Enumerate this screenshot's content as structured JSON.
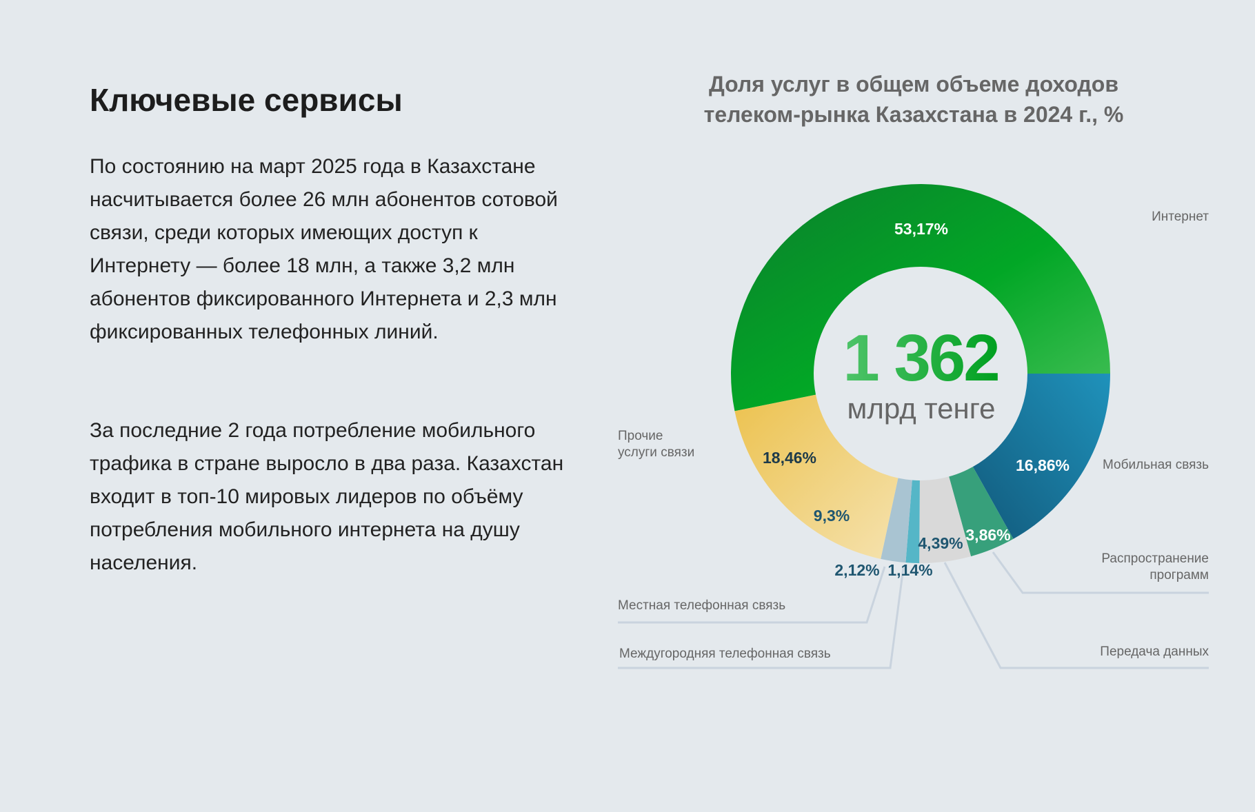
{
  "left": {
    "heading": "Ключевые сервисы",
    "paragraph1": "По состоянию на март 2025 года в Казахстане насчитывается более 26 млн абонентов сотовой связи, среди которых имеющих доступ к Интернету — более 18 млн, а также 3,2 млн абонентов фиксированного Интернета и 2,3 млн фиксированных телефонных линий.",
    "paragraph2": "За последние 2 года потребление мобильного трафика в стране выросло в два раза. Казахстан входит в топ-10 мировых лидеров по объёму потребления мобильного интернета на душу населения."
  },
  "chart_data": {
    "type": "pie",
    "variant": "donut",
    "title": "Доля услуг в общем объеме доходов телеком-рынка Казахстана в 2024 г., %",
    "center_value": "1 362",
    "center_unit": "млрд тенге",
    "series": [
      {
        "name": "Интернет",
        "value": 53.17,
        "label": "53,17%",
        "color": "#06a12a"
      },
      {
        "name": "Мобильная связь",
        "value": 16.86,
        "label": "16,86%",
        "color": "#1a7ba3"
      },
      {
        "name": "Распространение программ",
        "value": 3.86,
        "label": "3,86%",
        "color": "#37a07b"
      },
      {
        "name": "Передача данных",
        "value": 4.39,
        "label": "4,39%",
        "color": "#d9d9d9"
      },
      {
        "name": "Междугородняя телефонная связь",
        "value": 1.14,
        "label": "1,14%",
        "color": "#55b6c7"
      },
      {
        "name": "Местная телефонная связь",
        "value": 2.12,
        "label": "2,12%",
        "color": "#a9c4d2"
      },
      {
        "name": "Прочие услуги связи",
        "value": 18.46,
        "label": "18,46%",
        "color": "#efcc68"
      }
    ],
    "annotations": [
      {
        "text": "9,3%",
        "segment": "Прочие услуги связи"
      }
    ]
  }
}
